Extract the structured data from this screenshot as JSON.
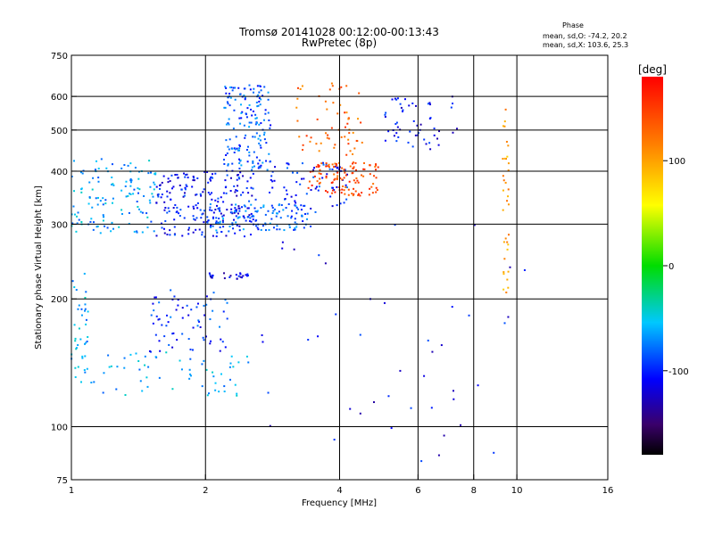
{
  "chart_data": {
    "type": "scatter",
    "title": "Tromsø 20141028 00:12:00-00:13:43",
    "subtitle": "RwPretec (8p)",
    "xlabel": "Frequency [MHz]",
    "ylabel": "Stationary phase Virtual Height [km]",
    "x_scale": "log",
    "y_scale": "log",
    "xlim": [
      1,
      16
    ],
    "ylim": [
      75,
      750
    ],
    "x_ticks": [
      1,
      2,
      4,
      6,
      8,
      10,
      16
    ],
    "y_ticks": [
      75,
      100,
      200,
      300,
      400,
      500,
      600,
      750
    ],
    "x_grid": [
      2,
      4,
      6,
      8,
      10
    ],
    "y_grid": [
      100,
      200,
      300,
      400,
      500,
      600
    ],
    "phase_info": {
      "title": "Phase",
      "line_o": "mean, sd,O: -74.2, 20.2",
      "line_x": "mean, sd,X: 103.6, 25.3"
    },
    "colorbar": {
      "label": "[deg]",
      "range": [
        -180,
        180
      ],
      "ticks": [
        -100,
        0,
        100
      ]
    },
    "clusters": [
      {
        "x": [
          1.0,
          1.09
        ],
        "y": [
          120,
          230
        ],
        "phase": -60,
        "count": 40
      },
      {
        "x": [
          1.0,
          1.55
        ],
        "y": [
          285,
          430
        ],
        "phase": -65,
        "count": 130
      },
      {
        "x": [
          1.1,
          2.5
        ],
        "y": [
          118,
          150
        ],
        "phase": -65,
        "count": 60
      },
      {
        "x": [
          1.5,
          2.3
        ],
        "y": [
          150,
          210
        ],
        "phase": -95,
        "count": 70
      },
      {
        "x": [
          1.55,
          2.6
        ],
        "y": [
          280,
          400
        ],
        "phase": -105,
        "count": 220
      },
      {
        "x": [
          2.0,
          3.4
        ],
        "y": [
          290,
          335
        ],
        "phase": -80,
        "count": 120
      },
      {
        "x": [
          2.2,
          2.8
        ],
        "y": [
          400,
          640
        ],
        "phase": -85,
        "count": 160
      },
      {
        "x": [
          2.7,
          4.2
        ],
        "y": [
          320,
          420
        ],
        "phase": -100,
        "count": 70
      },
      {
        "x": [
          3.4,
          4.9
        ],
        "y": [
          350,
          420
        ],
        "phase": 145,
        "count": 110
      },
      {
        "x": [
          3.2,
          4.5
        ],
        "y": [
          430,
          650
        ],
        "phase": 130,
        "count": 60
      },
      {
        "x": [
          5.0,
          7.5
        ],
        "y": [
          450,
          600
        ],
        "phase": -110,
        "count": 55
      },
      {
        "x": [
          9.3,
          9.6
        ],
        "y": [
          200,
          620
        ],
        "phase": 100,
        "count": 35
      },
      {
        "x": [
          2.0,
          2.5
        ],
        "y": [
          223,
          230
        ],
        "phase": -115,
        "count": 25
      },
      {
        "x": [
          2.5,
          10.5
        ],
        "y": [
          80,
          300
        ],
        "phase": -110,
        "count": 45
      }
    ]
  }
}
